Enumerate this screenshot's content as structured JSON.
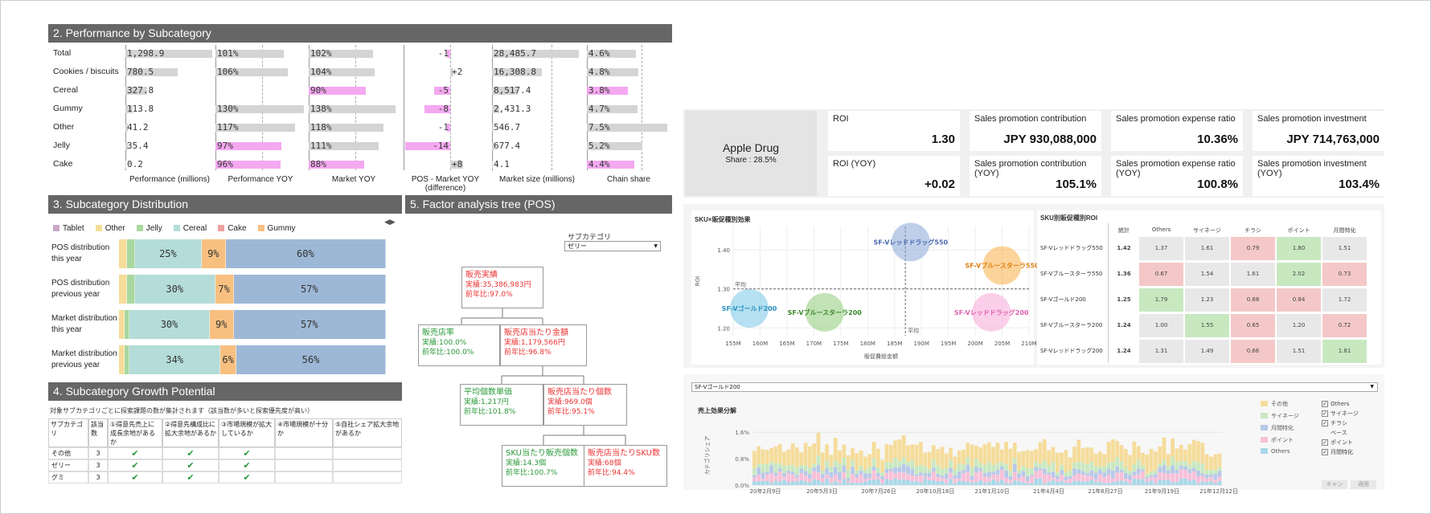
{
  "perf": {
    "title": "2. Performance by Subcategory",
    "rows": [
      {
        "name": "Total",
        "perf": "1,298.9",
        "yoy": "101%",
        "mkt": "102%",
        "diff": "-1",
        "size": "28,485.7",
        "share": "4.6%"
      },
      {
        "name": "Cookies / biscuits",
        "perf": "780.5",
        "yoy": "106%",
        "mkt": "104%",
        "diff": "+2",
        "size": "16,308.8",
        "share": "4.8%"
      },
      {
        "name": "Cereal",
        "perf": "327.8",
        "yoy": "",
        "mkt": "90%",
        "diff": "-5",
        "size": "8,517.4",
        "share": "3.8%"
      },
      {
        "name": "Gummy",
        "perf": "113.8",
        "yoy": "130%",
        "mkt": "138%",
        "diff": "-8",
        "size": "2,431.3",
        "share": "4.7%"
      },
      {
        "name": "Other",
        "perf": "41.2",
        "yoy": "117%",
        "mkt": "118%",
        "diff": "-1",
        "size": "546.7",
        "share": "7.5%"
      },
      {
        "name": "Jelly",
        "perf": "35.4",
        "yoy": "97%",
        "mkt": "111%",
        "diff": "-14",
        "size": "677.4",
        "share": "5.2%"
      },
      {
        "name": "Cake",
        "perf": "0.2",
        "yoy": "96%",
        "mkt": "88%",
        "diff": "+8",
        "size": "4.1",
        "share": "4.4%"
      }
    ],
    "columns": [
      "Performance (millions)",
      "Performance YOY",
      "Market YOY",
      "POS - Market YOY (difference)",
      "Market size (millions)",
      "Chain share"
    ]
  },
  "dist": {
    "title": "3. Subcategory Distribution",
    "legend": [
      {
        "name": "Tablet",
        "color": "#c9a8c9"
      },
      {
        "name": "Other",
        "color": "#f5dc9a"
      },
      {
        "name": "Jelly",
        "color": "#a8d8a0"
      },
      {
        "name": "Cereal",
        "color": "#b4dcd8"
      },
      {
        "name": "Cake",
        "color": "#f0a0a0"
      },
      {
        "name": "Gummy",
        "color": "#f8c080"
      }
    ],
    "rows": [
      {
        "label": "POS distribution this year",
        "segs": [
          {
            "w": 3,
            "c": "#f5dc9a"
          },
          {
            "w": 3,
            "c": "#a8d8a0"
          },
          {
            "w": 25,
            "c": "#b4dcd8",
            "t": "25%"
          },
          {
            "w": 9,
            "c": "#f8c080",
            "t": "9%"
          },
          {
            "w": 60,
            "c": "#9db8d6",
            "t": "60%"
          }
        ]
      },
      {
        "label": "POS distribution previous year",
        "segs": [
          {
            "w": 3,
            "c": "#f5dc9a"
          },
          {
            "w": 3,
            "c": "#a8d8a0"
          },
          {
            "w": 30,
            "c": "#b4dcd8",
            "t": "30%"
          },
          {
            "w": 7,
            "c": "#f8c080",
            "t": "7%"
          },
          {
            "w": 57,
            "c": "#9db8d6",
            "t": "57%"
          }
        ]
      },
      {
        "label": "Market distribution this year",
        "segs": [
          {
            "w": 2,
            "c": "#f5dc9a"
          },
          {
            "w": 2,
            "c": "#a8d8a0"
          },
          {
            "w": 30,
            "c": "#b4dcd8",
            "t": "30%"
          },
          {
            "w": 9,
            "c": "#f8c080",
            "t": "9%"
          },
          {
            "w": 57,
            "c": "#9db8d6",
            "t": "57%"
          }
        ]
      },
      {
        "label": "Market distribution previous year",
        "segs": [
          {
            "w": 2,
            "c": "#f5dc9a"
          },
          {
            "w": 2,
            "c": "#a8d8a0"
          },
          {
            "w": 34,
            "c": "#b4dcd8",
            "t": "34%"
          },
          {
            "w": 6,
            "c": "#f8c080",
            "t": "6%"
          },
          {
            "w": 56,
            "c": "#9db8d6",
            "t": "56%"
          }
        ]
      }
    ]
  },
  "growth": {
    "title": "4. Subcategory Growth Potential",
    "note": "対象サブカテゴリごとに探索課題の数が集計されます（該当数が多いと探索優先度が高い）",
    "headers": [
      "サブカテゴリ",
      "該当数",
      "①得意先売上に成長余地があるか",
      "②得意先構成比に拡大余地があるか",
      "③市場規模が拡大しているか",
      "④市場規模が十分か",
      "⑤自社シェア拡大余地があるか"
    ],
    "rows": [
      {
        "name": "その他",
        "count": "3",
        "checks": [
          true,
          true,
          true,
          false,
          false
        ]
      },
      {
        "name": "ゼリー",
        "count": "3",
        "checks": [
          true,
          true,
          true,
          false,
          false
        ]
      },
      {
        "name": "グミ",
        "count": "3",
        "checks": [
          true,
          true,
          true,
          false,
          false
        ]
      }
    ]
  },
  "tree": {
    "title": "5. Factor analysis tree (POS)",
    "select_label": "サブカテゴリ",
    "select_value": "ゼリー",
    "root": {
      "title": "販売実績",
      "a": "実績:35,386,983円",
      "b": "前年比:97.0%"
    },
    "n1": {
      "title": "販売店率",
      "a": "実績:100.0%",
      "b": "前年比:100.0%"
    },
    "n2": {
      "title": "販売店当たり金額",
      "a": "実績:1,179,566円",
      "b": "前年比:96.8%"
    },
    "n3": {
      "title": "平均個数単価",
      "a": "実績:1,217円",
      "b": "前年比:101.8%"
    },
    "n4": {
      "title": "販売店当たり個数",
      "a": "実績:969.0個",
      "b": "前年比:95.1%"
    },
    "n5": {
      "title": "SKU当たり販売個数",
      "a": "実績:14.3個",
      "b": "前年比:100.7%"
    },
    "n6": {
      "title": "販売店当たりSKU数",
      "a": "実績:68個",
      "b": "前年比:94.4%"
    }
  },
  "store": {
    "name": "Apple Drug",
    "share": "Share : 28.5%"
  },
  "kpis": [
    {
      "label": "ROI",
      "value": "1.30"
    },
    {
      "label": "Sales promotion contribution",
      "value": "JPY 930,088,000"
    },
    {
      "label": "Sales promotion expense ratio",
      "value": "10.36%"
    },
    {
      "label": "Sales promotion investment",
      "value": "JPY 714,763,000"
    },
    {
      "label": "ROI (YOY)",
      "value": "+0.02"
    },
    {
      "label": "Sales promotion contribution (YOY)",
      "value": "105.1%"
    },
    {
      "label": "Sales promotion expense ratio (YOY)",
      "value": "100.8%"
    },
    {
      "label": "Sales promotion investment (YOY)",
      "value": "103.4%"
    }
  ],
  "bubble": {
    "title": "SKU×販促種別効果",
    "ylabel": "ROI",
    "xlabel": "販促費総金額",
    "avg_label": "平均",
    "yticks": [
      "1.40",
      "1.30",
      "1.20"
    ],
    "xticks": [
      "155M",
      "160M",
      "165M",
      "170M",
      "175M",
      "180M",
      "185M",
      "190M",
      "195M",
      "200M",
      "205M",
      "210M"
    ],
    "points": [
      {
        "label": "SF-Vレッドドラッグ550",
        "color": "#8aa8d8",
        "x": 188,
        "y": 1.42
      },
      {
        "label": "SF-Vブルースターラ550",
        "color": "#f8b048",
        "x": 205,
        "y": 1.36
      },
      {
        "label": "SF-Vゴールド200",
        "color": "#78c8e8",
        "x": 158,
        "y": 1.25
      },
      {
        "label": "SF-Vブルースターラ200",
        "color": "#90cc78",
        "x": 172,
        "y": 1.24
      },
      {
        "label": "SF-Vレッドドラッグ200",
        "color": "#f8a8d8",
        "x": 203,
        "y": 1.24
      }
    ]
  },
  "heat": {
    "title": "SKU別販促種別ROI",
    "cols": [
      "統計",
      "Others",
      "サイネージ",
      "チラシ",
      "ポイント",
      "月間特化"
    ],
    "rows": [
      {
        "name": "SF-Vレッドドラッグ550",
        "vals": [
          "1.42",
          "1.37",
          "1.61",
          "0.79",
          "1.80",
          "1.51"
        ],
        "bg": [
          "#fff",
          "#e8e8e8",
          "#e8e8e8",
          "#f4c8c8",
          "#c8e8c0",
          "#e8e8e8"
        ]
      },
      {
        "name": "SF-Vブルースターラ550",
        "vals": [
          "1.36",
          "0.67",
          "1.54",
          "1.61",
          "2.02",
          "0.73"
        ],
        "bg": [
          "#fff",
          "#f4c8c8",
          "#e8e8e8",
          "#e8e8e8",
          "#c8e8c0",
          "#f4c8c8"
        ]
      },
      {
        "name": "SF-Vゴールド200",
        "vals": [
          "1.25",
          "1.79",
          "1.23",
          "0.88",
          "0.84",
          "1.72"
        ],
        "bg": [
          "#fff",
          "#c8e8c0",
          "#e8e8e8",
          "#f4c8c8",
          "#f4c8c8",
          "#e8e8e8"
        ]
      },
      {
        "name": "SF-Vブルースターラ200",
        "vals": [
          "1.24",
          "1.00",
          "1.55",
          "0.65",
          "1.20",
          "0.72"
        ],
        "bg": [
          "#fff",
          "#e8e8e8",
          "#c8e8c0",
          "#f4c8c8",
          "#e8e8e8",
          "#f4c8c8"
        ]
      },
      {
        "name": "SF-Vレッドドラッグ200",
        "vals": [
          "1.24",
          "1.31",
          "1.49",
          "0.66",
          "1.51",
          "1.81"
        ],
        "bg": [
          "#fff",
          "#e8e8e8",
          "#e8e8e8",
          "#f4c8c8",
          "#e8e8e8",
          "#c8e8c0"
        ]
      }
    ]
  },
  "effect": {
    "select_value": "SF-Vゴールド200",
    "title": "売上効果分解",
    "ylabel": "カテゴリシェア",
    "yticks": [
      "1.6%",
      "0.8%",
      "0.0%"
    ],
    "xticks": [
      "20年2月9日",
      "20年5月3日",
      "20年7月26日",
      "20年10月18日",
      "21年1月10日",
      "21年4月4日",
      "21年6月27日",
      "21年9月19日",
      "21年12月12日"
    ],
    "legend": [
      {
        "name": "その他",
        "color": "#f5dc9a"
      },
      {
        "name": "サイネージ",
        "color": "#c8e8c0"
      },
      {
        "name": "月間特化",
        "color": "#b8c8e8"
      },
      {
        "name": "ポイント",
        "color": "#f8c0d8"
      },
      {
        "name": "Others",
        "color": "#a8d8e8"
      }
    ],
    "filters": [
      {
        "name": "Others",
        "checked": true
      },
      {
        "name": "サイネージ",
        "checked": true
      },
      {
        "name": "チラシ",
        "checked": true
      },
      {
        "name": "ベース",
        "checked": false
      },
      {
        "name": "ポイント",
        "checked": true
      },
      {
        "name": "月間特化",
        "checked": true
      }
    ],
    "cancel": "キャン",
    "apply": "適用"
  }
}
